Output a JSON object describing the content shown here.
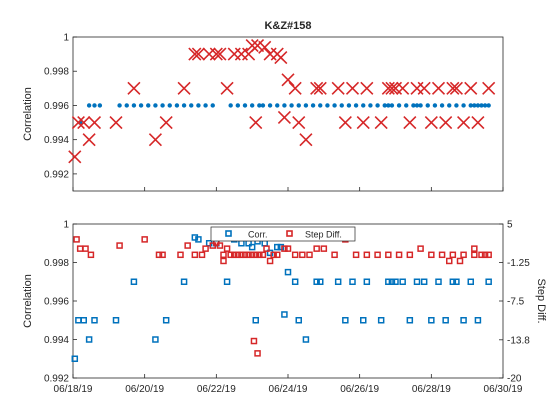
{
  "colors": {
    "corr": "#0072BD",
    "step": "#D62728",
    "axis": "#262626"
  },
  "chart_data": [
    {
      "type": "scatter",
      "title": "K&Z#158",
      "ylabel": "Correlation",
      "xlabel": "",
      "xlim": [
        0,
        12
      ],
      "ylim": [
        0.991,
        1.0
      ],
      "yticks": [
        0.992,
        0.994,
        0.996,
        0.998,
        1
      ],
      "ytick_labels": [
        "0.992",
        "0.994",
        "0.996",
        "0.998",
        "1"
      ],
      "xticks": [
        0,
        2,
        4,
        6,
        8,
        10,
        12
      ],
      "grid": false,
      "series": [
        {
          "marker": "dot",
          "color": "#0072BD",
          "x": [
            0.2,
            0.45,
            0.6,
            0.75,
            1.3,
            1.5,
            1.7,
            1.9,
            2.1,
            2.3,
            2.5,
            2.7,
            2.9,
            3.1,
            3.3,
            3.5,
            3.7,
            3.9,
            4.4,
            4.6,
            4.8,
            5.0,
            5.2,
            5.3,
            5.5,
            5.7,
            5.9,
            6.1,
            6.3,
            6.5,
            6.7,
            6.9,
            7.1,
            7.3,
            7.5,
            7.7,
            7.9,
            8.1,
            8.3,
            8.5,
            8.7,
            8.9,
            9.1,
            9.3,
            9.5,
            9.7,
            9.9,
            10.1,
            10.3,
            10.5,
            10.7,
            10.9,
            11.1,
            11.3,
            11.5,
            11.6,
            11.4,
            11.2,
            9.6,
            8.8
          ],
          "y": [
            0.995,
            0.996,
            0.996,
            0.996,
            0.996,
            0.996,
            0.996,
            0.996,
            0.996,
            0.996,
            0.996,
            0.996,
            0.996,
            0.996,
            0.996,
            0.996,
            0.996,
            0.996,
            0.996,
            0.996,
            0.996,
            0.996,
            0.996,
            0.996,
            0.996,
            0.996,
            0.996,
            0.996,
            0.996,
            0.996,
            0.996,
            0.996,
            0.996,
            0.996,
            0.996,
            0.996,
            0.996,
            0.996,
            0.996,
            0.996,
            0.996,
            0.996,
            0.996,
            0.996,
            0.996,
            0.996,
            0.996,
            0.996,
            0.996,
            0.996,
            0.996,
            0.996,
            0.996,
            0.996,
            0.996,
            0.996,
            0.996,
            0.996,
            0.996,
            0.996
          ]
        },
        {
          "marker": "x",
          "color": "#D62728",
          "x": [
            0.05,
            0.15,
            0.3,
            0.45,
            0.6,
            1.2,
            1.7,
            2.3,
            2.6,
            3.1,
            3.4,
            3.5,
            3.8,
            4.0,
            4.1,
            4.5,
            4.7,
            4.9,
            5.0,
            5.15,
            5.35,
            5.5,
            5.7,
            5.8,
            6.0,
            6.2,
            4.3,
            5.1,
            5.9,
            6.3,
            6.5,
            6.8,
            6.9,
            7.4,
            7.6,
            7.8,
            8.1,
            8.2,
            8.6,
            8.8,
            8.9,
            9.0,
            9.2,
            9.4,
            9.6,
            9.8,
            10.0,
            10.2,
            10.4,
            10.6,
            10.9,
            11.1,
            11.3,
            11.6,
            10.7
          ],
          "y": [
            0.993,
            0.995,
            0.995,
            0.994,
            0.995,
            0.995,
            0.997,
            0.994,
            0.995,
            0.997,
            0.999,
            0.999,
            0.999,
            0.999,
            0.999,
            0.999,
            0.999,
            0.999,
            0.9995,
            0.9995,
            0.9994,
            0.999,
            0.999,
            0.9988,
            0.9975,
            0.997,
            0.997,
            0.995,
            0.9953,
            0.995,
            0.994,
            0.997,
            0.997,
            0.997,
            0.995,
            0.997,
            0.995,
            0.997,
            0.995,
            0.997,
            0.997,
            0.997,
            0.997,
            0.995,
            0.997,
            0.997,
            0.995,
            0.997,
            0.995,
            0.997,
            0.995,
            0.997,
            0.995,
            0.997,
            0.997
          ]
        }
      ]
    },
    {
      "type": "scatter",
      "title": "",
      "ylabel": "Correlation",
      "y2label": "Step Diff.",
      "xlabel": "",
      "xlim": [
        0,
        12
      ],
      "ylim": [
        0.992,
        1.0
      ],
      "y2lim": [
        -20,
        5
      ],
      "yticks": [
        0.992,
        0.994,
        0.996,
        0.998,
        1
      ],
      "ytick_labels": [
        "0.992",
        "0.994",
        "0.996",
        "0.998",
        "1"
      ],
      "y2ticks": [
        5,
        -1.25,
        -7.5,
        -13.8,
        -20
      ],
      "y2tick_labels": [
        "5",
        "-1.25",
        "-7.5",
        "-13.8",
        "-20"
      ],
      "xticks": [
        0,
        2,
        4,
        6,
        8,
        10,
        12
      ],
      "xtick_labels": [
        "06/18/19",
        "06/20/19",
        "06/22/19",
        "06/24/19",
        "06/26/19",
        "06/28/19",
        "06/30/19"
      ],
      "legend": {
        "location": "top-center",
        "entries": [
          "Corr.",
          "Step Diff."
        ]
      },
      "grid": false,
      "series": [
        {
          "name": "Corr.",
          "axis": "left",
          "marker": "square",
          "color": "#0072BD",
          "x": [
            0.05,
            0.15,
            0.3,
            0.45,
            0.6,
            1.2,
            1.7,
            2.3,
            2.6,
            3.1,
            3.4,
            3.5,
            3.8,
            4.0,
            4.1,
            4.5,
            4.7,
            4.9,
            5.0,
            5.15,
            5.35,
            5.5,
            5.7,
            5.8,
            6.0,
            6.2,
            4.3,
            5.1,
            5.9,
            6.3,
            6.5,
            6.8,
            6.9,
            7.4,
            7.6,
            7.8,
            8.1,
            8.2,
            8.6,
            8.8,
            8.9,
            9.0,
            9.2,
            9.4,
            9.6,
            9.8,
            10.0,
            10.2,
            10.4,
            10.6,
            10.9,
            11.1,
            11.3,
            11.6,
            10.7
          ],
          "y": [
            0.993,
            0.995,
            0.995,
            0.994,
            0.995,
            0.995,
            0.997,
            0.994,
            0.995,
            0.997,
            0.9993,
            0.9992,
            0.999,
            0.999,
            0.9993,
            0.9992,
            0.999,
            0.999,
            0.9988,
            0.9991,
            0.999,
            0.9985,
            0.9988,
            0.9988,
            0.9975,
            0.997,
            0.997,
            0.995,
            0.9953,
            0.995,
            0.994,
            0.997,
            0.997,
            0.997,
            0.995,
            0.997,
            0.995,
            0.997,
            0.995,
            0.997,
            0.997,
            0.997,
            0.997,
            0.995,
            0.997,
            0.997,
            0.995,
            0.997,
            0.995,
            0.997,
            0.995,
            0.997,
            0.995,
            0.997,
            0.997
          ]
        },
        {
          "name": "Step Diff.",
          "axis": "right",
          "marker": "square",
          "color": "#D62728",
          "x": [
            0.1,
            0.2,
            0.35,
            0.5,
            1.3,
            2.0,
            2.4,
            2.5,
            3.0,
            3.2,
            3.4,
            3.6,
            3.7,
            3.9,
            4.0,
            4.1,
            4.2,
            4.3,
            4.4,
            4.5,
            4.6,
            4.7,
            4.8,
            4.9,
            5.0,
            5.1,
            5.2,
            5.3,
            5.4,
            5.6,
            5.7,
            5.9,
            6.0,
            6.2,
            6.4,
            6.6,
            6.8,
            7.0,
            7.3,
            7.6,
            7.9,
            8.2,
            8.5,
            8.8,
            9.1,
            9.4,
            9.7,
            10.0,
            10.3,
            10.6,
            10.9,
            11.2,
            11.5,
            11.6,
            11.4,
            11.2,
            10.8,
            10.5,
            5.5,
            4.2,
            5.05,
            5.15
          ],
          "y": [
            2.5,
            1.0,
            1.0,
            0.0,
            1.5,
            2.5,
            0.0,
            0.0,
            0.0,
            1.5,
            0.0,
            0.0,
            1.0,
            1.5,
            2.0,
            1.5,
            0.0,
            1.0,
            0.0,
            0.0,
            0.0,
            0.0,
            0.0,
            0.0,
            0.0,
            0.0,
            0.0,
            0.0,
            1.0,
            0.0,
            0.0,
            1.0,
            1.0,
            0.0,
            0.0,
            0.0,
            1.0,
            1.0,
            0.0,
            2.5,
            0.0,
            0.0,
            0.0,
            0.0,
            0.0,
            0.0,
            1.0,
            0.0,
            0.0,
            0.0,
            0.0,
            1.0,
            0.0,
            0.0,
            0.0,
            0.0,
            -1.0,
            -1.0,
            -1.0,
            -1.0,
            -14.0,
            -16.0
          ]
        }
      ]
    }
  ]
}
